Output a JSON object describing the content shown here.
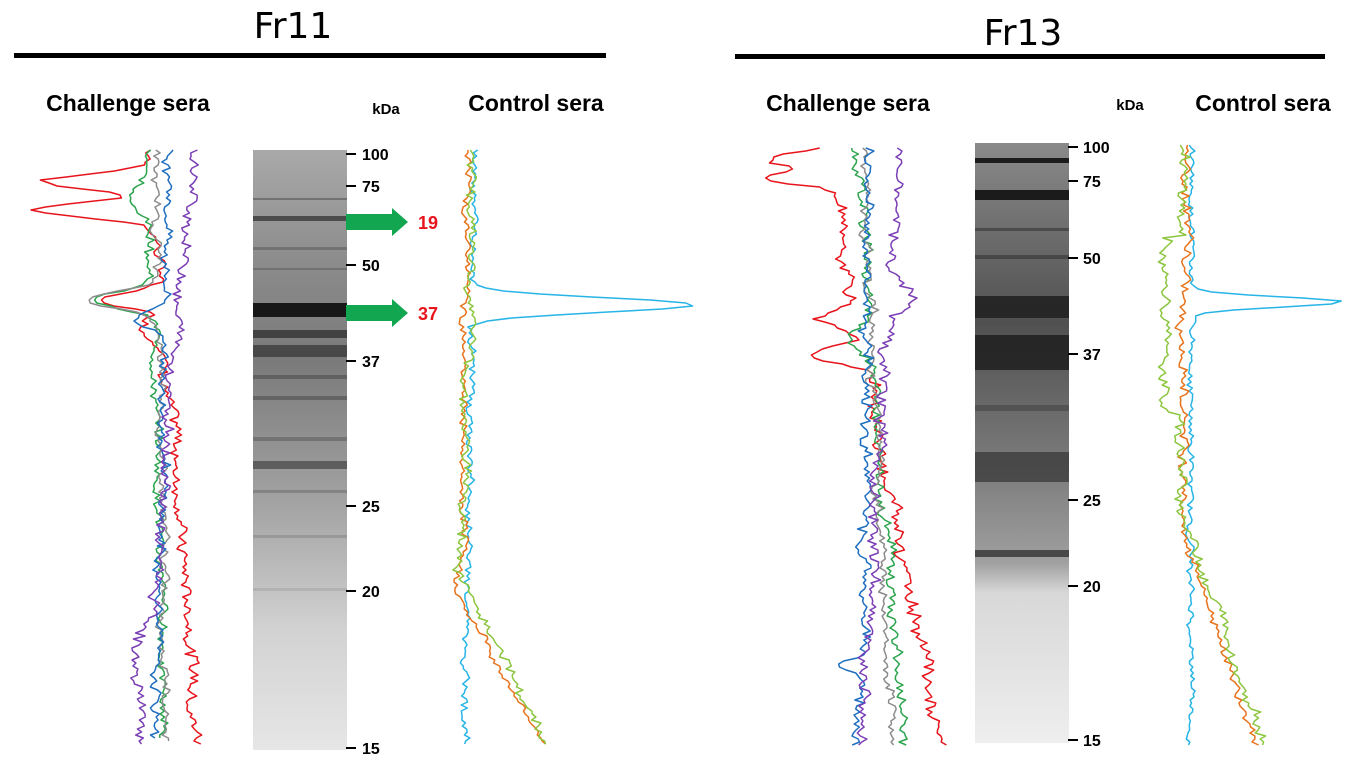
{
  "panels": [
    {
      "title": "Fr11",
      "challenge_label": "Challenge  sera",
      "control_label": "Control  sera",
      "unit_label": "kDa",
      "markers": [
        "100",
        "75",
        "50",
        "37",
        "25",
        "20",
        "15"
      ],
      "bands": [
        {
          "label": "19",
          "marker_kda": "between 75 and 50"
        },
        {
          "label": "37",
          "marker_kda": "between 50 and 37"
        }
      ]
    },
    {
      "title": "Fr13",
      "challenge_label": "Challenge  sera",
      "control_label": "Control  sera",
      "unit_label": "kDa",
      "markers": [
        "100",
        "75",
        "50",
        "37",
        "25",
        "20",
        "15"
      ]
    }
  ],
  "colors": {
    "red": "#e8141c",
    "green": "#2ca44e",
    "grey": "#8c8c8c",
    "blue": "#1f6fc1",
    "purple": "#7b3fb5",
    "cyan": "#27b4e6",
    "orange": "#e8731c",
    "lightgreen": "#8cc63f",
    "arrow": "#12a650"
  }
}
